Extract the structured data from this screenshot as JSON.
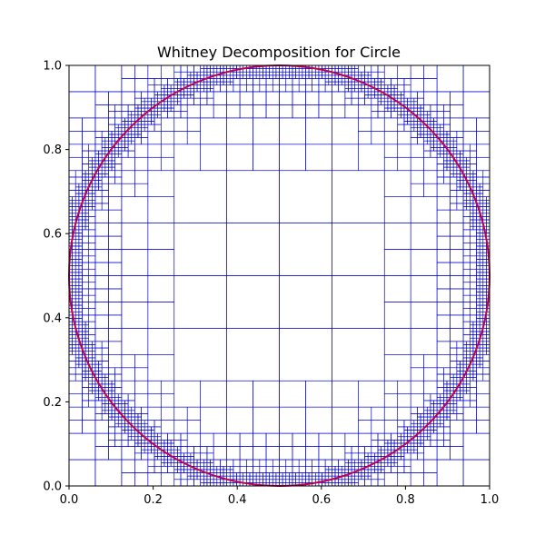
{
  "chart_data": {
    "type": "other",
    "title": "Whitney Decomposition for Circle",
    "xlabel": "",
    "ylabel": "",
    "xlim": [
      0,
      1
    ],
    "ylim": [
      0,
      1
    ],
    "grid": false,
    "legend": null,
    "x_ticks": [
      "0.0",
      "0.2",
      "0.4",
      "0.6",
      "0.8",
      "1.0"
    ],
    "y_ticks": [
      "0.0",
      "0.2",
      "0.4",
      "0.6",
      "0.8",
      "1.0"
    ],
    "circle": {
      "center": [
        0.5,
        0.5
      ],
      "radius": 0.5,
      "color": "#c0004a"
    },
    "square_color": "#0000cc",
    "decomposition": {
      "max_depth": 7,
      "split_distance_factor": 1.0
    }
  }
}
